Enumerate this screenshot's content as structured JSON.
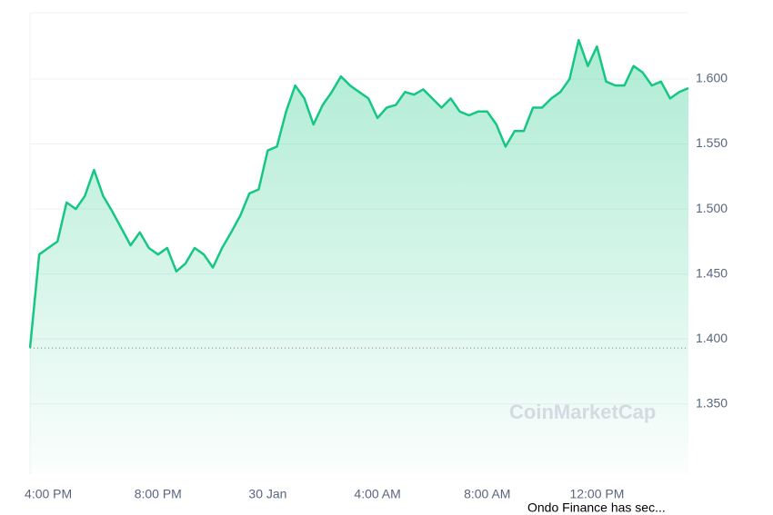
{
  "chart_data": {
    "type": "line",
    "categories": [
      null,
      null,
      "4:00 PM",
      null,
      null,
      null,
      null,
      null,
      null,
      null,
      null,
      null,
      null,
      null,
      "8:00 PM",
      null,
      null,
      null,
      null,
      null,
      null,
      null,
      null,
      null,
      null,
      null,
      "30 Jan",
      null,
      null,
      null,
      null,
      null,
      null,
      null,
      null,
      null,
      null,
      null,
      "4:00 AM",
      null,
      null,
      null,
      null,
      null,
      null,
      null,
      null,
      null,
      null,
      null,
      "8:00 AM",
      null,
      null,
      null,
      null,
      null,
      null,
      null,
      null,
      null,
      null,
      null,
      "12:00 PM",
      null,
      null,
      null,
      null,
      null,
      null,
      null,
      null,
      null,
      null
    ],
    "series": [
      {
        "color": "#16c784",
        "values": [
          1.393,
          1.465,
          1.47,
          1.475,
          1.505,
          1.5,
          1.51,
          1.53,
          1.51,
          1.498,
          1.485,
          1.472,
          1.482,
          1.47,
          1.465,
          1.47,
          1.452,
          1.458,
          1.47,
          1.465,
          1.455,
          1.47,
          1.482,
          1.495,
          1.512,
          1.515,
          1.545,
          1.548,
          1.575,
          1.595,
          1.585,
          1.565,
          1.58,
          1.59,
          1.602,
          1.595,
          1.59,
          1.585,
          1.57,
          1.578,
          1.58,
          1.59,
          1.588,
          1.592,
          1.585,
          1.578,
          1.585,
          1.575,
          1.572,
          1.575,
          1.575,
          1.565,
          1.548,
          1.56,
          1.56,
          1.578,
          1.578,
          1.585,
          1.59,
          1.6,
          1.63,
          1.61,
          1.625,
          1.598,
          1.595,
          1.595,
          1.61,
          1.605,
          1.595,
          1.598,
          1.585,
          1.59,
          1.593
        ]
      }
    ],
    "baseline": 1.393,
    "ylim": [
      1.296,
      1.651
    ],
    "yticks": [
      {
        "value": 1.35,
        "label": "1.350"
      },
      {
        "value": 1.4,
        "label": "1.400"
      },
      {
        "value": 1.45,
        "label": "1.450"
      },
      {
        "value": 1.5,
        "label": "1.500"
      },
      {
        "value": 1.55,
        "label": "1.550"
      },
      {
        "value": 1.6,
        "label": "1.600"
      }
    ],
    "grid": true,
    "watermark": "CoinMarketCap",
    "news": "Ondo Finance has sec..."
  }
}
